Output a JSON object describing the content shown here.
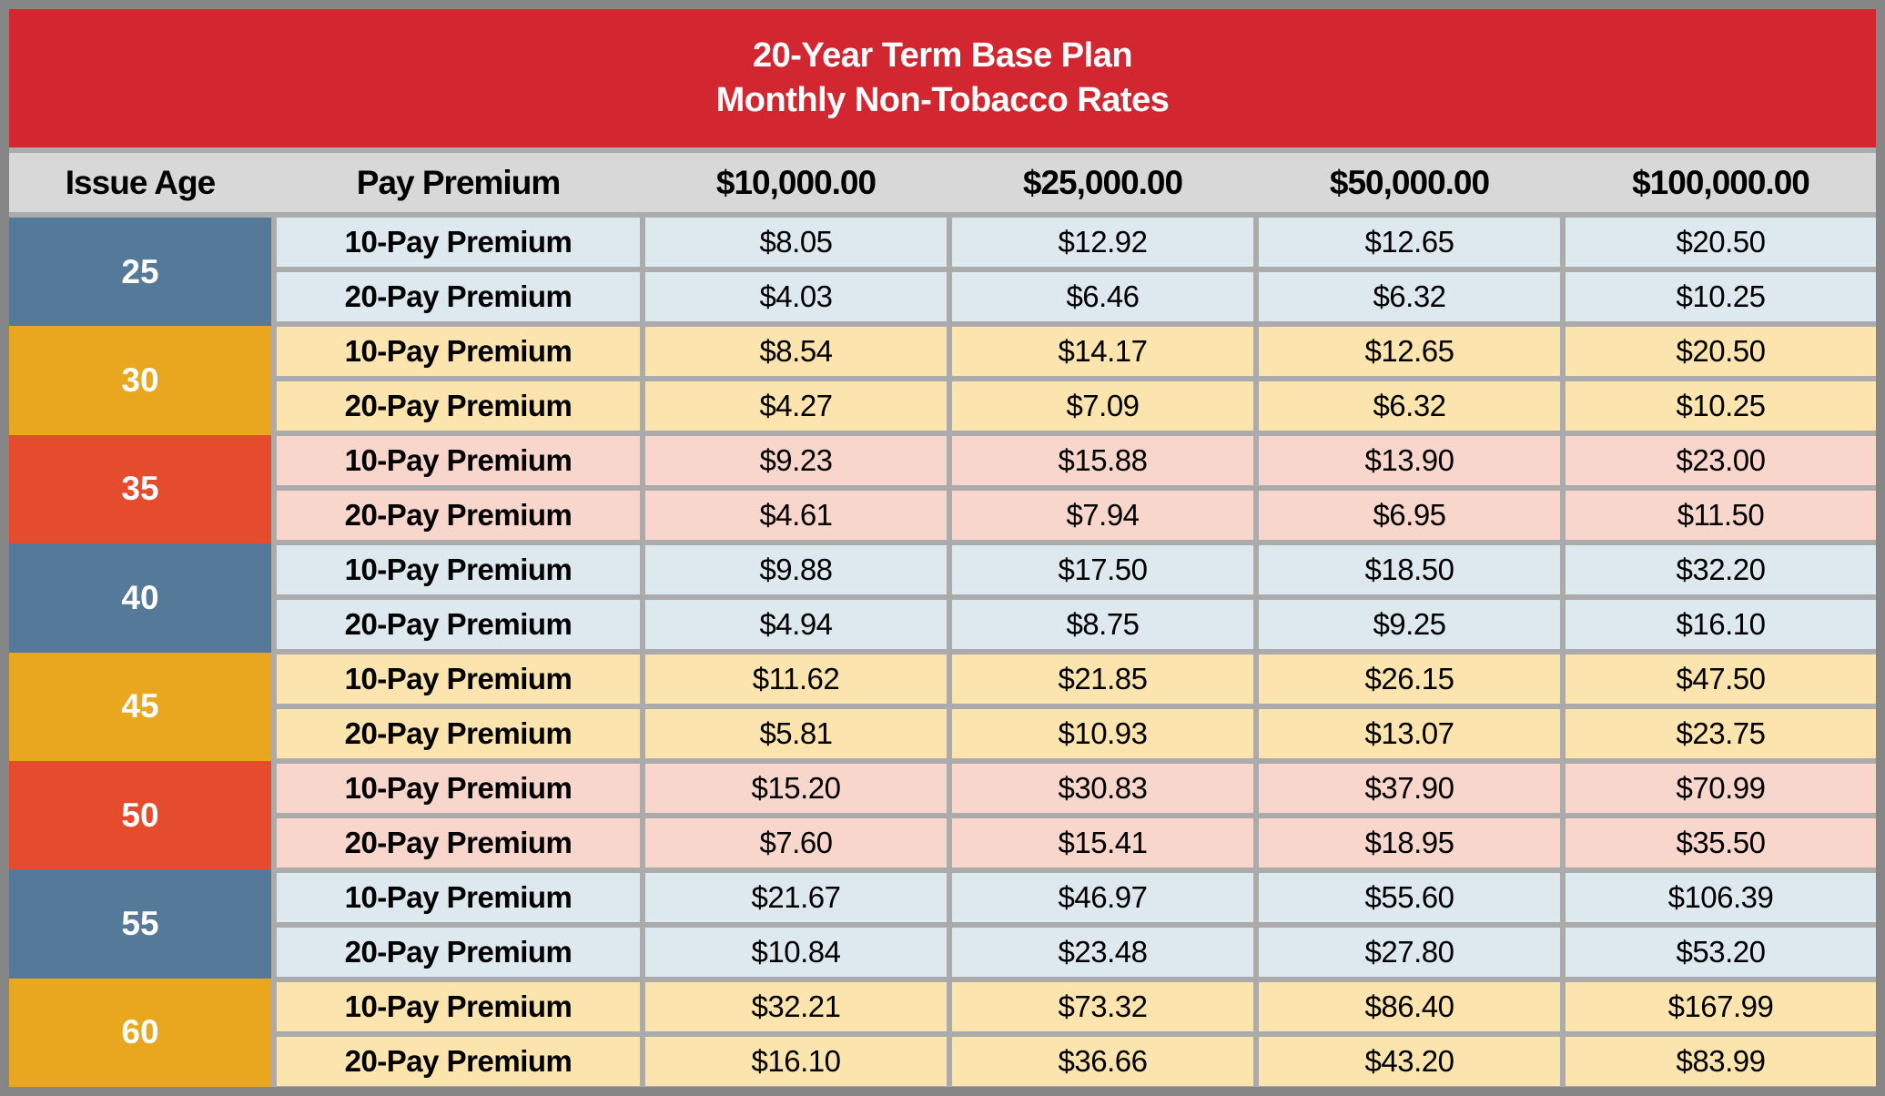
{
  "banner": {
    "line1": "20-Year Term Base Plan",
    "line2": "Monthly Non-Tobacco Rates"
  },
  "header": {
    "columns": [
      "Issue Age",
      "Pay Premium",
      "$10,000.00",
      "$25,000.00",
      "$50,000.00",
      "$100,000.00"
    ]
  },
  "pay_labels": [
    "10-Pay Premium",
    "20-Pay Premium"
  ],
  "age_groups": [
    {
      "age": "25",
      "theme": "blue",
      "rows": [
        [
          "$8.05",
          "$12.92",
          "$12.65",
          "$20.50"
        ],
        [
          "$4.03",
          "$6.46",
          "$6.32",
          "$10.25"
        ]
      ]
    },
    {
      "age": "30",
      "theme": "gold",
      "rows": [
        [
          "$8.54",
          "$14.17",
          "$12.65",
          "$20.50"
        ],
        [
          "$4.27",
          "$7.09",
          "$6.32",
          "$10.25"
        ]
      ]
    },
    {
      "age": "35",
      "theme": "red",
      "rows": [
        [
          "$9.23",
          "$15.88",
          "$13.90",
          "$23.00"
        ],
        [
          "$4.61",
          "$7.94",
          "$6.95",
          "$11.50"
        ]
      ]
    },
    {
      "age": "40",
      "theme": "blue",
      "rows": [
        [
          "$9.88",
          "$17.50",
          "$18.50",
          "$32.20"
        ],
        [
          "$4.94",
          "$8.75",
          "$9.25",
          "$16.10"
        ]
      ]
    },
    {
      "age": "45",
      "theme": "gold",
      "rows": [
        [
          "$11.62",
          "$21.85",
          "$26.15",
          "$47.50"
        ],
        [
          "$5.81",
          "$10.93",
          "$13.07",
          "$23.75"
        ]
      ]
    },
    {
      "age": "50",
      "theme": "red",
      "rows": [
        [
          "$15.20",
          "$30.83",
          "$37.90",
          "$70.99"
        ],
        [
          "$7.60",
          "$15.41",
          "$18.95",
          "$35.50"
        ]
      ]
    },
    {
      "age": "55",
      "theme": "blue",
      "rows": [
        [
          "$21.67",
          "$46.97",
          "$55.60",
          "$106.39"
        ],
        [
          "$10.84",
          "$23.48",
          "$27.80",
          "$53.20"
        ]
      ]
    },
    {
      "age": "60",
      "theme": "gold",
      "rows": [
        [
          "$32.21",
          "$73.32",
          "$86.40",
          "$167.99"
        ],
        [
          "$16.10",
          "$36.66",
          "$43.20",
          "$83.99"
        ]
      ]
    }
  ],
  "colors": {
    "banner_red": "#D22730",
    "border_gray": "#868686",
    "grid_gray": "#ABABAB",
    "header_gray": "#D8D8D8",
    "age_blue": "#547999",
    "age_gold": "#E8A71F",
    "age_red": "#E54C2D",
    "row_blue": "#DDE8EF",
    "row_gold": "#FBE4AD",
    "row_pink": "#F8D6CC",
    "title_text": "#FFFFFF",
    "body_text": "#000000"
  }
}
